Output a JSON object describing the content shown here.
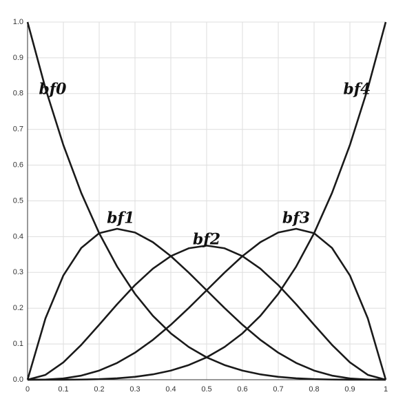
{
  "chart_data": {
    "type": "line",
    "x": [
      0,
      0.05,
      0.1,
      0.15,
      0.2,
      0.25,
      0.3,
      0.35,
      0.4,
      0.45,
      0.5,
      0.55,
      0.6,
      0.65,
      0.7,
      0.75,
      0.8,
      0.85,
      0.9,
      0.95,
      1
    ],
    "series": [
      {
        "name": "bf0",
        "color": "#1a1a1a",
        "values": [
          1,
          0.8145,
          0.6561,
          0.522,
          0.4096,
          0.3164,
          0.2401,
          0.1785,
          0.1296,
          0.0915,
          0.0625,
          0.041,
          0.0256,
          0.015,
          0.0081,
          0.0039,
          0.0016,
          0.0005,
          0.0001,
          0,
          0
        ]
      },
      {
        "name": "bf1",
        "color": "#1a1a1a",
        "values": [
          0,
          0.1715,
          0.2916,
          0.3685,
          0.4096,
          0.4219,
          0.4116,
          0.3845,
          0.3456,
          0.2995,
          0.25,
          0.2005,
          0.1536,
          0.1115,
          0.0756,
          0.0469,
          0.0256,
          0.0115,
          0.0036,
          0.0005,
          0
        ]
      },
      {
        "name": "bf2",
        "color": "#1a1a1a",
        "values": [
          0,
          0.0135,
          0.0486,
          0.0975,
          0.1536,
          0.2109,
          0.2646,
          0.3105,
          0.3456,
          0.3675,
          0.375,
          0.3675,
          0.3456,
          0.3105,
          0.2646,
          0.2109,
          0.1536,
          0.0975,
          0.0486,
          0.0135,
          0
        ]
      },
      {
        "name": "bf3",
        "color": "#1a1a1a",
        "values": [
          0,
          0.0005,
          0.0036,
          0.0115,
          0.0256,
          0.0469,
          0.0756,
          0.1115,
          0.1536,
          0.2005,
          0.25,
          0.2995,
          0.3456,
          0.3845,
          0.4116,
          0.4219,
          0.4096,
          0.3685,
          0.2916,
          0.1715,
          0
        ]
      },
      {
        "name": "bf4",
        "color": "#1a1a1a",
        "values": [
          0,
          0,
          0.0001,
          0.0005,
          0.0016,
          0.0039,
          0.0081,
          0.015,
          0.0256,
          0.041,
          0.0625,
          0.0915,
          0.1296,
          0.1785,
          0.2401,
          0.3164,
          0.4096,
          0.522,
          0.6561,
          0.8145,
          1
        ]
      }
    ],
    "xlim": [
      0,
      1
    ],
    "xticks": [
      0,
      0.1,
      0.2,
      0.3,
      0.4,
      0.5,
      0.6,
      0.7,
      0.8,
      0.9,
      1
    ],
    "ylim": [
      0,
      1
    ],
    "yticks": [
      {
        "value": 0,
        "label": "0.0"
      },
      0.1,
      0.2,
      0.3,
      0.4,
      0.5,
      0.6,
      0.7,
      0.8,
      0.9,
      {
        "value": 1,
        "label": "1.0"
      }
    ],
    "grid": true
  }
}
